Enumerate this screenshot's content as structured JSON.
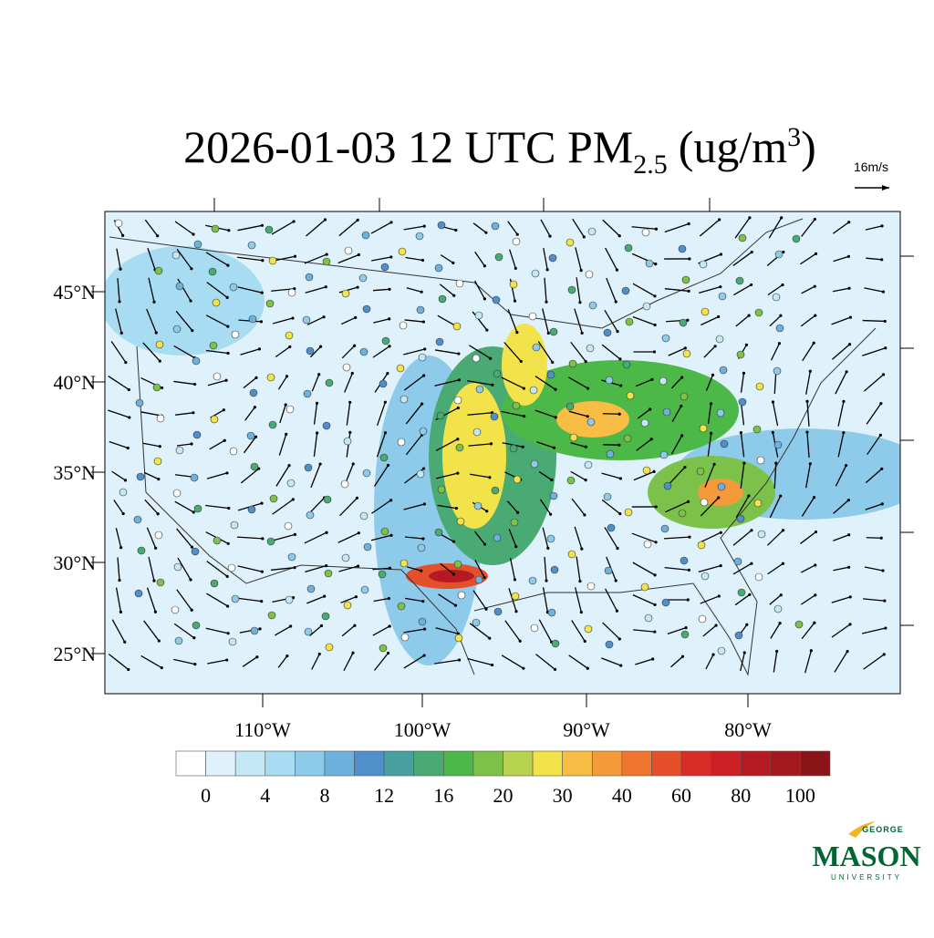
{
  "title": {
    "main": "2026-01-03 12 UTC PM",
    "subscript": "2.5",
    "units": "(ug/m",
    "superscript": "3",
    "close": ")"
  },
  "wind_reference": "16m/s",
  "latitude_labels": [
    "45°N",
    "40°N",
    "35°N",
    "30°N",
    "25°N"
  ],
  "longitude_labels": [
    "110°W",
    "100°W",
    "90°W",
    "80°W"
  ],
  "colorbar": {
    "labels": [
      0,
      4,
      8,
      12,
      16,
      20,
      30,
      40,
      60,
      80,
      100
    ],
    "colors": [
      "#ffffff",
      "#dff2fb",
      "#c5e8f7",
      "#a8dcf3",
      "#8ecbeb",
      "#6fb1dd",
      "#4f90cb",
      "#48a0a0",
      "#4aaa73",
      "#4cb848",
      "#7cc24a",
      "#b7d24f",
      "#f3e34a",
      "#f7bd45",
      "#f59a3a",
      "#f0752f",
      "#e5502b",
      "#d92b28",
      "#cc1f26",
      "#b51a22",
      "#a3181f",
      "#8b1419"
    ]
  },
  "logo": {
    "top": "GEORGE",
    "middle": "MASON",
    "bottom": "UNIVERSITY"
  }
}
